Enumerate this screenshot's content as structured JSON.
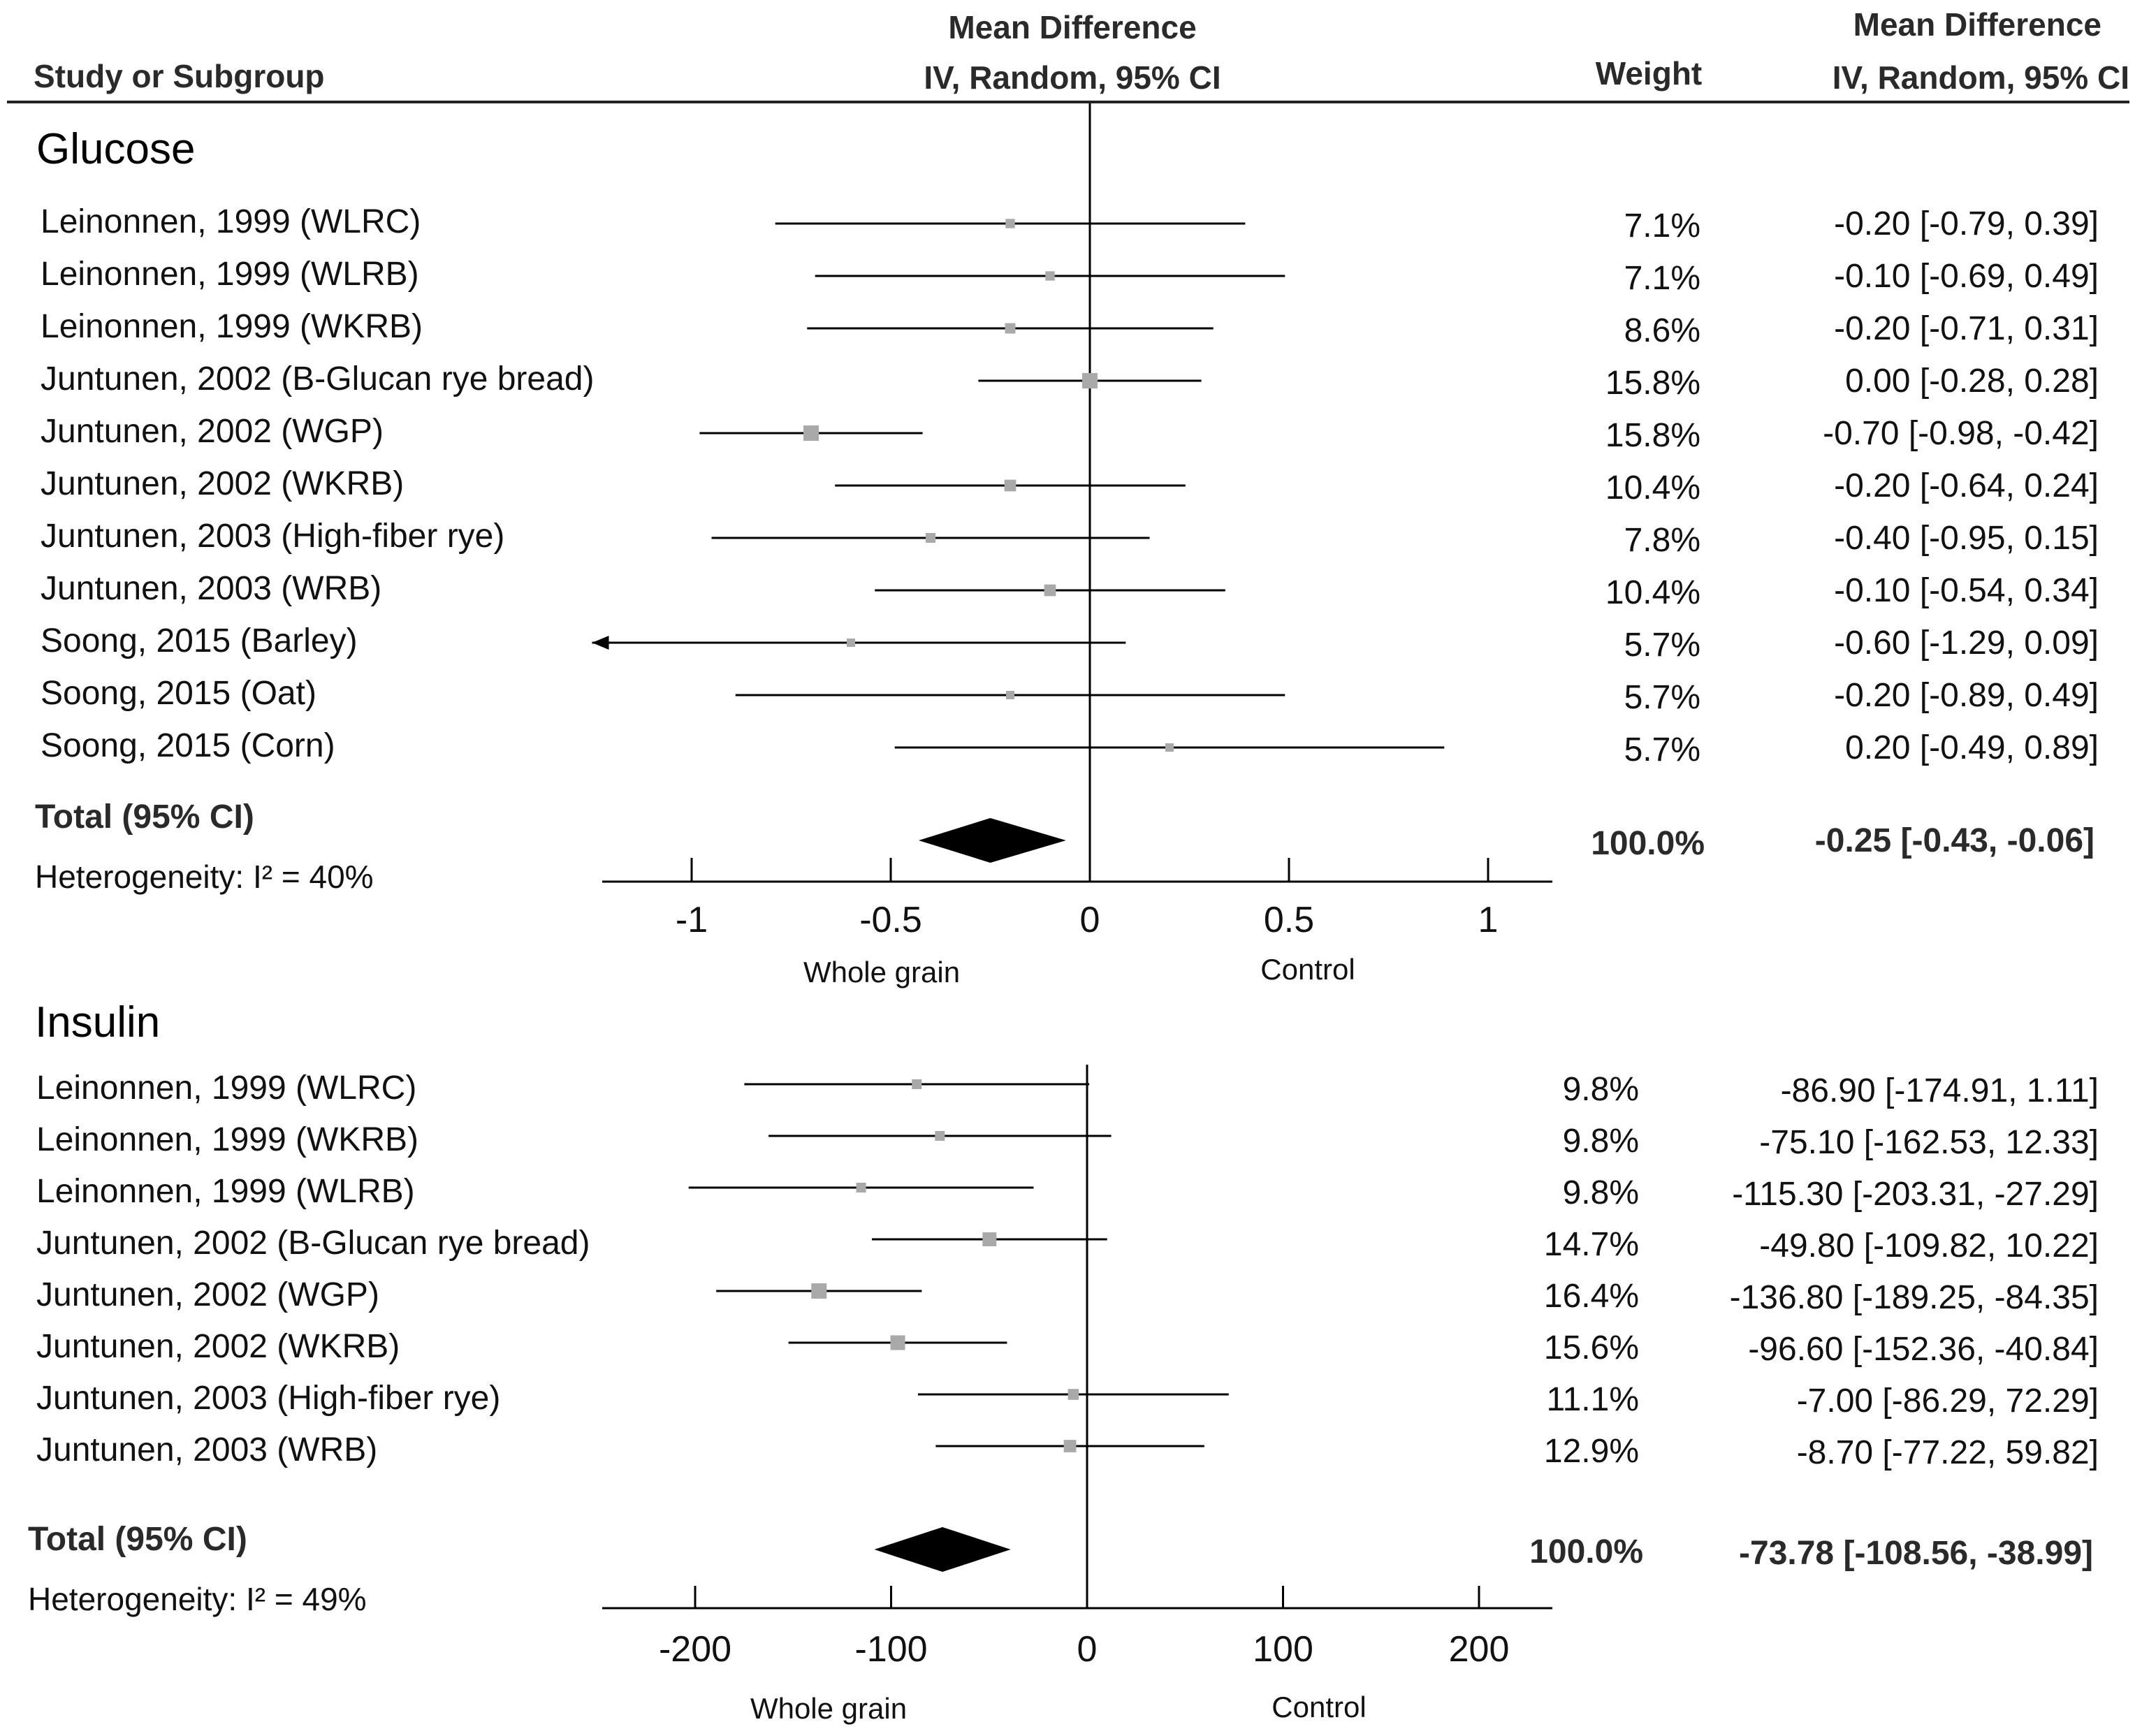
{
  "header": {
    "study": "Study or Subgroup",
    "md_plot_line1": "Mean Difference",
    "md_plot_line2": "IV, Random, 95% CI",
    "weight": "Weight",
    "md_text_line1": "Mean Difference",
    "md_text_line2": "IV, Random, 95% CI"
  },
  "colors": {
    "marker": "#a9a9a9",
    "line": "#000000",
    "diamond": "#000000"
  },
  "chart_data": [
    {
      "type": "forest",
      "title": "Glucose",
      "xlim": [
        -1.25,
        1.2
      ],
      "ticks": [
        -1,
        -0.5,
        0,
        0.5,
        1
      ],
      "tick_labels": [
        "-1",
        "-0.5",
        "0",
        "0.5",
        "1"
      ],
      "xlabel_left": "Whole grain",
      "xlabel_right": "Control",
      "studies": [
        {
          "name": "Leinonnen, 1999 (WLRC)",
          "md": -0.2,
          "lo": -0.79,
          "hi": 0.39,
          "weight": "7.1%",
          "label": "-0.20 [-0.79, 0.39]"
        },
        {
          "name": "Leinonnen, 1999 (WLRB)",
          "md": -0.1,
          "lo": -0.69,
          "hi": 0.49,
          "weight": "7.1%",
          "label": "-0.10 [-0.69, 0.49]"
        },
        {
          "name": "Leinonnen, 1999 (WKRB)",
          "md": -0.2,
          "lo": -0.71,
          "hi": 0.31,
          "weight": "8.6%",
          "label": "-0.20 [-0.71, 0.31]"
        },
        {
          "name": "Juntunen, 2002 (B-Glucan rye bread)",
          "md": 0.0,
          "lo": -0.28,
          "hi": 0.28,
          "weight": "15.8%",
          "label": "0.00 [-0.28, 0.28]"
        },
        {
          "name": "Juntunen, 2002 (WGP)",
          "md": -0.7,
          "lo": -0.98,
          "hi": -0.42,
          "weight": "15.8%",
          "label": "-0.70 [-0.98, -0.42]"
        },
        {
          "name": "Juntunen, 2002 (WKRB)",
          "md": -0.2,
          "lo": -0.64,
          "hi": 0.24,
          "weight": "10.4%",
          "label": "-0.20 [-0.64, 0.24]"
        },
        {
          "name": "Juntunen, 2003 (High-fiber rye)",
          "md": -0.4,
          "lo": -0.95,
          "hi": 0.15,
          "weight": "7.8%",
          "label": "-0.40 [-0.95, 0.15]"
        },
        {
          "name": "Juntunen, 2003 (WRB)",
          "md": -0.1,
          "lo": -0.54,
          "hi": 0.34,
          "weight": "10.4%",
          "label": "-0.10 [-0.54, 0.34]"
        },
        {
          "name": "Soong, 2015 (Barley)",
          "md": -0.6,
          "lo": -1.29,
          "hi": 0.09,
          "weight": "5.7%",
          "label": "-0.60 [-1.29, 0.09]"
        },
        {
          "name": "Soong, 2015 (Oat)",
          "md": -0.2,
          "lo": -0.89,
          "hi": 0.49,
          "weight": "5.7%",
          "label": "-0.20 [-0.89, 0.49]"
        },
        {
          "name": "Soong, 2015 (Corn)",
          "md": 0.2,
          "lo": -0.49,
          "hi": 0.89,
          "weight": "5.7%",
          "label": "0.20 [-0.49, 0.89]"
        }
      ],
      "total": {
        "label": "Total (95% CI)",
        "md": -0.25,
        "lo": -0.43,
        "hi": -0.06,
        "weight": "100.0%",
        "ci_text": "-0.25 [-0.43, -0.06]"
      },
      "heterogeneity": "Heterogeneity: I² = 40%"
    },
    {
      "type": "forest",
      "title": "Insulin",
      "xlim": [
        -247,
        240
      ],
      "ticks": [
        -200,
        -100,
        0,
        100,
        200
      ],
      "tick_labels": [
        "-200",
        "-100",
        "0",
        "100",
        "200"
      ],
      "xlabel_left": "Whole grain",
      "xlabel_right": "Control",
      "studies": [
        {
          "name": "Leinonnen, 1999 (WLRC)",
          "md": -86.9,
          "lo": -174.91,
          "hi": 1.11,
          "weight": "9.8%",
          "label": "-86.90 [-174.91, 1.11]"
        },
        {
          "name": "Leinonnen, 1999 (WKRB)",
          "md": -75.1,
          "lo": -162.53,
          "hi": 12.33,
          "weight": "9.8%",
          "label": "-75.10 [-162.53, 12.33]"
        },
        {
          "name": "Leinonnen, 1999 (WLRB)",
          "md": -115.3,
          "lo": -203.31,
          "hi": -27.29,
          "weight": "9.8%",
          "label": "-115.30 [-203.31, -27.29]"
        },
        {
          "name": "Juntunen, 2002 (B-Glucan rye bread)",
          "md": -49.8,
          "lo": -109.82,
          "hi": 10.22,
          "weight": "14.7%",
          "label": "-49.80 [-109.82, 10.22]"
        },
        {
          "name": "Juntunen, 2002 (WGP)",
          "md": -136.8,
          "lo": -189.25,
          "hi": -84.35,
          "weight": "16.4%",
          "label": "-136.80 [-189.25, -84.35]"
        },
        {
          "name": "Juntunen, 2002 (WKRB)",
          "md": -96.6,
          "lo": -152.36,
          "hi": -40.84,
          "weight": "15.6%",
          "label": "-96.60 [-152.36, -40.84]"
        },
        {
          "name": "Juntunen, 2003 (High-fiber rye)",
          "md": -7.0,
          "lo": -86.29,
          "hi": 72.29,
          "weight": "11.1%",
          "label": "-7.00 [-86.29, 72.29]"
        },
        {
          "name": "Juntunen, 2003 (WRB)",
          "md": -8.7,
          "lo": -77.22,
          "hi": 59.82,
          "weight": "12.9%",
          "label": "-8.70 [-77.22, 59.82]"
        }
      ],
      "total": {
        "label": "Total (95% CI)",
        "md": -73.78,
        "lo": -108.56,
        "hi": -38.99,
        "weight": "100.0%",
        "ci_text": "-73.78 [-108.56, -38.99]"
      },
      "heterogeneity": "Heterogeneity: I² = 49%"
    }
  ]
}
